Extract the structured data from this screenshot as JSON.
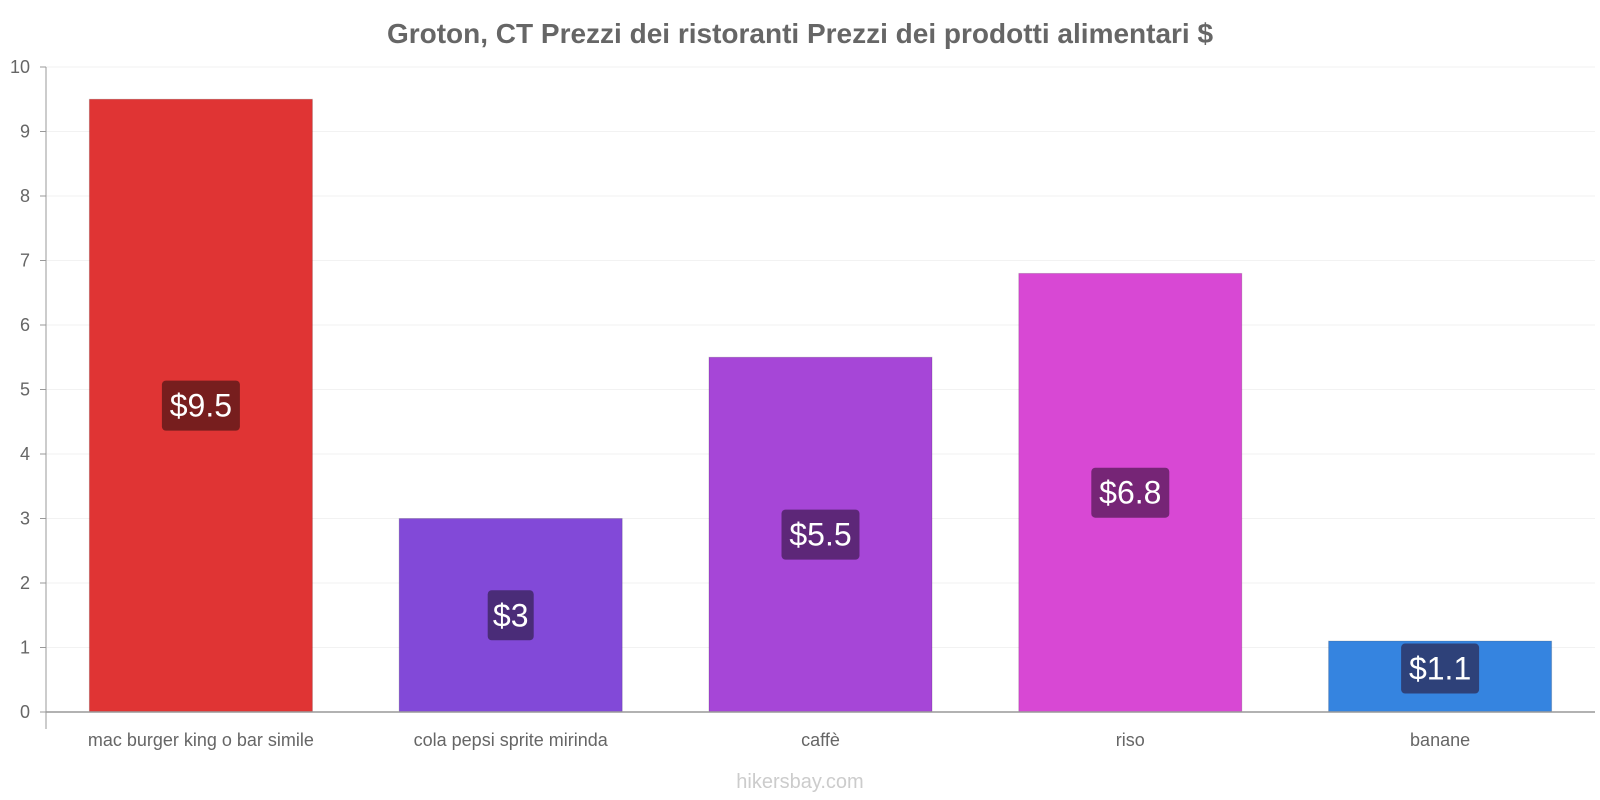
{
  "chart_data": {
    "type": "bar",
    "title": "Groton, CT Prezzi dei ristoranti Prezzi dei prodotti alimentari $",
    "xlabel": "",
    "ylabel": "",
    "ylim": [
      0,
      10
    ],
    "yticks": [
      0,
      1,
      2,
      3,
      4,
      5,
      6,
      7,
      8,
      9,
      10
    ],
    "grid": true,
    "categories": [
      "mac burger king o bar simile",
      "cola pepsi sprite mirinda",
      "caffè",
      "riso",
      "banane"
    ],
    "values": [
      9.5,
      3,
      5.5,
      6.8,
      1.1
    ],
    "value_labels": [
      "$9.5",
      "$3",
      "$5.5",
      "$6.8",
      "$1.1"
    ],
    "bar_colors": [
      "#e03434",
      "#8249d8",
      "#a646d7",
      "#d848d4",
      "#3584e0"
    ],
    "label_bg_colors": [
      "#6b1c1c",
      "#44296e",
      "#55236e",
      "#6b216b",
      "#2d3a6e"
    ]
  },
  "watermark": "hikersbay.com"
}
